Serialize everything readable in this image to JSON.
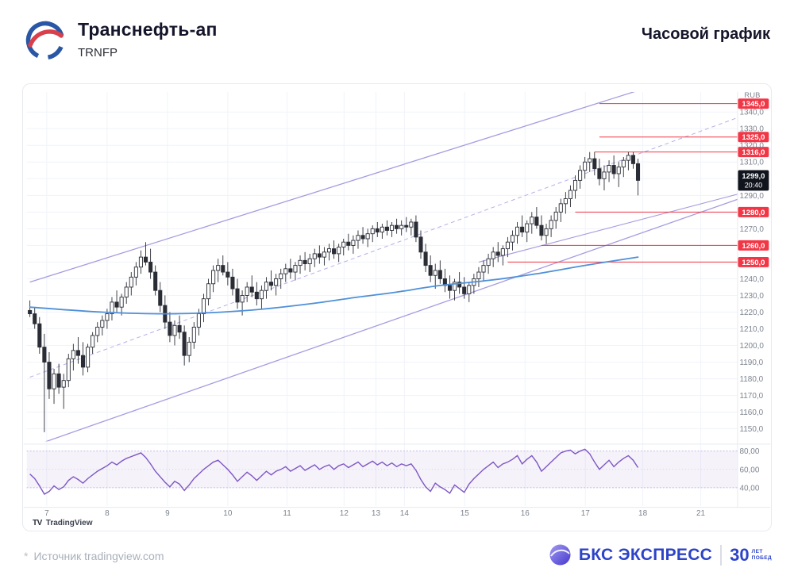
{
  "header": {
    "title": "Транснефть-ап",
    "ticker": "TRNFP",
    "timeframe": "Часовой график"
  },
  "attribution": {
    "mark": "TV",
    "label": "TradingView"
  },
  "footer": {
    "source_mark": "*",
    "source": "Источник tradingview.com",
    "brand": "БКС ЭКСПРЕСС",
    "badge_number": "30",
    "badge_line1": "ЛЕТ",
    "badge_line2": "ПОБЕД"
  },
  "colors": {
    "red": "#f23645",
    "candle": "#2a2d35",
    "ma": "#4f90d9",
    "channel": "#a69ce0",
    "channel_dash": "#b7aee8",
    "rsi": "#7e57c2",
    "rsi_band": "rgba(126,87,194,0.08)",
    "rsi_line_soft": "#c5b8ec",
    "grid": "#f0f3fa",
    "axis": "#7d8490",
    "badge": "#10141c",
    "brand_blue": "#2d43c8"
  },
  "chart_data": {
    "type": "candlestick",
    "symbol": "TRNFP",
    "timeframe": "1h",
    "currency_label": "RUB",
    "price_axis": {
      "min": 1145,
      "max": 1352,
      "grid_step": 10,
      "grey_labels": [
        [
          1340,
          "1340,0"
        ],
        [
          1330,
          "1330,0"
        ],
        [
          1320,
          "1320,0"
        ],
        [
          1310,
          "1310,0"
        ],
        [
          1290,
          "1290,0"
        ],
        [
          1270,
          "1270,0"
        ],
        [
          1240,
          "1240,0"
        ],
        [
          1230,
          "1230,0"
        ],
        [
          1220,
          "1220,0"
        ],
        [
          1210,
          "1210,0"
        ],
        [
          1200,
          "1200,0"
        ],
        [
          1190,
          "1190,0"
        ],
        [
          1180,
          "1180,0"
        ],
        [
          1170,
          "1170,0"
        ],
        [
          1160,
          "1160,0"
        ],
        [
          1150,
          "1150,0"
        ]
      ]
    },
    "current": {
      "value": 1299,
      "price_label": "1299,0",
      "time_label": "20:40"
    },
    "levels": [
      {
        "value": 1345,
        "label": "1345,0",
        "from_i": 118
      },
      {
        "value": 1325,
        "label": "1325,0",
        "from_i": 118
      },
      {
        "value": 1316,
        "label": "1316,0",
        "from_i": 117
      },
      {
        "value": 1280,
        "label": "1280,0",
        "from_i": 113
      },
      {
        "value": 1260,
        "label": "1260,0",
        "from_i": 106
      },
      {
        "value": 1250,
        "label": "1250,0",
        "from_i": 99
      }
    ],
    "xlabels": [
      [
        "7",
        3.5
      ],
      [
        "8",
        16
      ],
      [
        "9",
        28.5
      ],
      [
        "10",
        41
      ],
      [
        "11",
        53.3
      ],
      [
        "12",
        65.1
      ],
      [
        "13",
        71.7
      ],
      [
        "14",
        77.6
      ],
      [
        "15",
        90.1
      ],
      [
        "16",
        102.6
      ],
      [
        "17",
        115.1
      ],
      [
        "18",
        127
      ],
      [
        "21",
        139
      ]
    ],
    "channel": {
      "upper": [
        [
          0,
          1238
        ],
        [
          147,
          1372
        ]
      ],
      "lower": [
        [
          0,
          1139
        ],
        [
          147,
          1288
        ]
      ],
      "mid": [
        [
          0,
          1181
        ],
        [
          147,
          1337
        ]
      ],
      "inner": [
        [
          93,
          1250
        ],
        [
          147,
          1291
        ]
      ]
    },
    "ma": {
      "name": "MA",
      "points": [
        [
          0,
          1223
        ],
        [
          15,
          1220
        ],
        [
          30,
          1219
        ],
        [
          45,
          1221
        ],
        [
          58,
          1225
        ],
        [
          68,
          1229
        ],
        [
          76,
          1232
        ],
        [
          85,
          1236
        ],
        [
          95,
          1239
        ],
        [
          105,
          1243
        ],
        [
          115,
          1248
        ],
        [
          126,
          1253
        ]
      ]
    },
    "candles": [
      [
        1221,
        1227,
        1217,
        1219
      ],
      [
        1219,
        1223,
        1210,
        1213
      ],
      [
        1213,
        1217,
        1195,
        1199
      ],
      [
        1199,
        1207,
        1148,
        1190
      ],
      [
        1190,
        1196,
        1168,
        1174
      ],
      [
        1174,
        1186,
        1165,
        1183
      ],
      [
        1183,
        1189,
        1171,
        1175
      ],
      [
        1175,
        1183,
        1162,
        1179
      ],
      [
        1179,
        1195,
        1175,
        1192
      ],
      [
        1192,
        1201,
        1185,
        1197
      ],
      [
        1197,
        1205,
        1189,
        1194
      ],
      [
        1194,
        1202,
        1182,
        1187
      ],
      [
        1187,
        1201,
        1184,
        1199
      ],
      [
        1199,
        1208,
        1195,
        1206
      ],
      [
        1206,
        1214,
        1202,
        1211
      ],
      [
        1211,
        1218,
        1206,
        1215
      ],
      [
        1215,
        1222,
        1210,
        1219
      ],
      [
        1219,
        1229,
        1215,
        1226
      ],
      [
        1226,
        1233,
        1220,
        1223
      ],
      [
        1223,
        1231,
        1218,
        1229
      ],
      [
        1229,
        1238,
        1225,
        1235
      ],
      [
        1235,
        1244,
        1230,
        1241
      ],
      [
        1241,
        1250,
        1236,
        1247
      ],
      [
        1247,
        1257,
        1243,
        1253
      ],
      [
        1253,
        1262,
        1248,
        1250
      ],
      [
        1250,
        1258,
        1240,
        1244
      ],
      [
        1244,
        1248,
        1230,
        1233
      ],
      [
        1233,
        1238,
        1220,
        1224
      ],
      [
        1224,
        1230,
        1210,
        1214
      ],
      [
        1214,
        1220,
        1202,
        1206
      ],
      [
        1206,
        1215,
        1200,
        1212
      ],
      [
        1212,
        1218,
        1204,
        1208
      ],
      [
        1208,
        1212,
        1188,
        1194
      ],
      [
        1194,
        1205,
        1190,
        1202
      ],
      [
        1202,
        1214,
        1198,
        1211
      ],
      [
        1211,
        1222,
        1206,
        1219
      ],
      [
        1219,
        1231,
        1214,
        1228
      ],
      [
        1228,
        1240,
        1224,
        1237
      ],
      [
        1237,
        1248,
        1232,
        1245
      ],
      [
        1245,
        1252,
        1238,
        1248
      ],
      [
        1248,
        1254,
        1242,
        1244
      ],
      [
        1244,
        1250,
        1236,
        1241
      ],
      [
        1241,
        1246,
        1230,
        1234
      ],
      [
        1234,
        1240,
        1222,
        1226
      ],
      [
        1226,
        1233,
        1218,
        1230
      ],
      [
        1230,
        1238,
        1226,
        1235
      ],
      [
        1235,
        1242,
        1229,
        1232
      ],
      [
        1232,
        1238,
        1224,
        1228
      ],
      [
        1228,
        1236,
        1222,
        1233
      ],
      [
        1233,
        1241,
        1228,
        1238
      ],
      [
        1238,
        1245,
        1233,
        1236
      ],
      [
        1236,
        1243,
        1230,
        1240
      ],
      [
        1240,
        1246,
        1234,
        1243
      ],
      [
        1243,
        1249,
        1238,
        1246
      ],
      [
        1246,
        1252,
        1240,
        1244
      ],
      [
        1244,
        1250,
        1239,
        1248
      ],
      [
        1248,
        1254,
        1243,
        1251
      ],
      [
        1251,
        1256,
        1245,
        1249
      ],
      [
        1249,
        1255,
        1244,
        1252
      ],
      [
        1252,
        1258,
        1247,
        1255
      ],
      [
        1255,
        1260,
        1249,
        1253
      ],
      [
        1253,
        1259,
        1248,
        1256
      ],
      [
        1256,
        1261,
        1251,
        1258
      ],
      [
        1258,
        1263,
        1252,
        1255
      ],
      [
        1255,
        1261,
        1250,
        1259
      ],
      [
        1259,
        1264,
        1254,
        1262
      ],
      [
        1262,
        1267,
        1257,
        1260
      ],
      [
        1260,
        1266,
        1255,
        1263
      ],
      [
        1263,
        1269,
        1258,
        1266
      ],
      [
        1266,
        1271,
        1261,
        1264
      ],
      [
        1264,
        1270,
        1259,
        1267
      ],
      [
        1267,
        1272,
        1262,
        1270
      ],
      [
        1270,
        1274,
        1265,
        1268
      ],
      [
        1268,
        1273,
        1264,
        1271
      ],
      [
        1271,
        1275,
        1266,
        1269
      ],
      [
        1269,
        1274,
        1265,
        1272
      ],
      [
        1272,
        1276,
        1267,
        1270
      ],
      [
        1270,
        1275,
        1266,
        1272
      ],
      [
        1272,
        1277,
        1268,
        1271
      ],
      [
        1271,
        1276,
        1266,
        1274
      ],
      [
        1274,
        1278,
        1262,
        1265
      ],
      [
        1265,
        1269,
        1252,
        1256
      ],
      [
        1256,
        1261,
        1244,
        1248
      ],
      [
        1248,
        1254,
        1238,
        1242
      ],
      [
        1242,
        1249,
        1234,
        1245
      ],
      [
        1245,
        1251,
        1237,
        1240
      ],
      [
        1240,
        1246,
        1232,
        1236
      ],
      [
        1236,
        1242,
        1228,
        1233
      ],
      [
        1233,
        1240,
        1227,
        1238
      ],
      [
        1238,
        1244,
        1231,
        1235
      ],
      [
        1235,
        1241,
        1228,
        1231
      ],
      [
        1231,
        1238,
        1226,
        1236
      ],
      [
        1236,
        1243,
        1231,
        1240
      ],
      [
        1240,
        1247,
        1235,
        1244
      ],
      [
        1244,
        1251,
        1239,
        1248
      ],
      [
        1248,
        1255,
        1243,
        1252
      ],
      [
        1252,
        1259,
        1247,
        1256
      ],
      [
        1256,
        1262,
        1250,
        1254
      ],
      [
        1254,
        1260,
        1248,
        1258
      ],
      [
        1258,
        1265,
        1253,
        1262
      ],
      [
        1262,
        1269,
        1257,
        1266
      ],
      [
        1266,
        1274,
        1261,
        1271
      ],
      [
        1271,
        1278,
        1265,
        1268
      ],
      [
        1268,
        1275,
        1262,
        1273
      ],
      [
        1273,
        1280,
        1267,
        1277
      ],
      [
        1277,
        1283,
        1270,
        1272
      ],
      [
        1272,
        1278,
        1263,
        1266
      ],
      [
        1266,
        1273,
        1261,
        1270
      ],
      [
        1270,
        1278,
        1265,
        1275
      ],
      [
        1275,
        1283,
        1270,
        1280
      ],
      [
        1280,
        1288,
        1274,
        1285
      ],
      [
        1285,
        1292,
        1279,
        1288
      ],
      [
        1288,
        1296,
        1283,
        1293
      ],
      [
        1293,
        1302,
        1288,
        1299
      ],
      [
        1299,
        1308,
        1294,
        1305
      ],
      [
        1305,
        1313,
        1300,
        1310
      ],
      [
        1310,
        1316,
        1304,
        1312
      ],
      [
        1312,
        1316,
        1302,
        1306
      ],
      [
        1306,
        1312,
        1296,
        1300
      ],
      [
        1300,
        1308,
        1293,
        1304
      ],
      [
        1304,
        1311,
        1298,
        1308
      ],
      [
        1308,
        1314,
        1300,
        1303
      ],
      [
        1303,
        1310,
        1295,
        1307
      ],
      [
        1307,
        1313,
        1301,
        1311
      ],
      [
        1311,
        1316,
        1305,
        1314
      ],
      [
        1314,
        1316,
        1306,
        1309
      ],
      [
        1309,
        1312,
        1290,
        1299
      ]
    ],
    "rsi": {
      "band": [
        40,
        80
      ],
      "labels": [
        [
          80,
          "80,00"
        ],
        [
          60,
          "60,00"
        ],
        [
          40,
          "40,00"
        ]
      ],
      "values": [
        55,
        50,
        42,
        33,
        36,
        42,
        38,
        41,
        48,
        52,
        49,
        45,
        50,
        54,
        58,
        61,
        64,
        68,
        65,
        69,
        72,
        74,
        76,
        78,
        73,
        66,
        58,
        52,
        46,
        41,
        47,
        44,
        37,
        43,
        50,
        55,
        60,
        64,
        68,
        70,
        65,
        60,
        54,
        47,
        52,
        57,
        53,
        48,
        53,
        58,
        54,
        58,
        60,
        63,
        58,
        61,
        64,
        59,
        62,
        65,
        60,
        63,
        65,
        60,
        64,
        66,
        62,
        65,
        68,
        63,
        66,
        69,
        65,
        68,
        64,
        67,
        63,
        66,
        64,
        66,
        59,
        49,
        41,
        36,
        45,
        41,
        38,
        34,
        43,
        39,
        35,
        44,
        50,
        55,
        60,
        64,
        68,
        62,
        66,
        68,
        71,
        75,
        66,
        71,
        75,
        68,
        58,
        63,
        68,
        73,
        78,
        80,
        81,
        77,
        80,
        82,
        77,
        68,
        60,
        65,
        70,
        63,
        68,
        72,
        75,
        70,
        62
      ]
    }
  }
}
